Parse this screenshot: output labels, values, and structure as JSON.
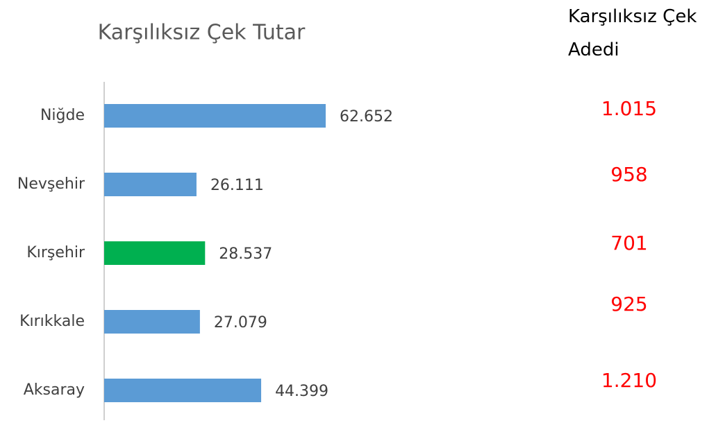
{
  "chart_data": {
    "type": "bar",
    "orientation": "horizontal",
    "title": "Karşılıksız Çek Tutar",
    "categories": [
      "Niğde",
      "Nevşehir",
      "Kırşehir",
      "Kırıkkale",
      "Aksaray"
    ],
    "values": [
      62652,
      26111,
      28537,
      27079,
      44399
    ],
    "value_labels": [
      "62.652",
      "26.111",
      "28.537",
      "27.079",
      "44.399"
    ],
    "colors": [
      "#5b9bd5",
      "#5b9bd5",
      "#00b050",
      "#5b9bd5",
      "#5b9bd5"
    ]
  },
  "count_column": {
    "title": "Karşılıksız Çek Adedi",
    "values": [
      "1.015",
      "958",
      "701",
      "925",
      "1.210"
    ]
  }
}
